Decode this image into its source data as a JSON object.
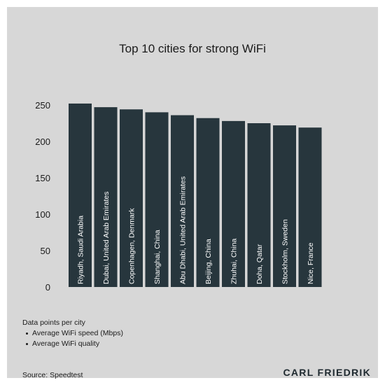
{
  "chart_data": {
    "type": "bar",
    "title": "Top 10 cities for strong WiFi",
    "categories": [
      "Riyadh, Saudi Arabia",
      "Dubai, United Arab Emirates",
      "Copenhagen, Denmark",
      "Shanghai, China",
      "Abu Dhabi, United Arab Emirates",
      "Beijing, China",
      "Zhuhai, China",
      "Doha, Qatar",
      "Stockholm, Sweden",
      "Nice, France"
    ],
    "values": [
      252,
      247,
      244,
      240,
      236,
      232,
      228,
      225,
      222,
      219
    ],
    "ylim": [
      0,
      250
    ],
    "yticks": [
      "0",
      "50",
      "100",
      "150",
      "200",
      "250"
    ],
    "bar_color": "#27363d",
    "background_color": "#d7d7d7",
    "grid": false
  },
  "legend": {
    "heading": "Data points per city",
    "items": [
      "Average WiFi speed (Mbps)",
      "Average WiFi quality"
    ]
  },
  "source": "Source: Speedtest",
  "brand": "CARL FRIEDRIK"
}
